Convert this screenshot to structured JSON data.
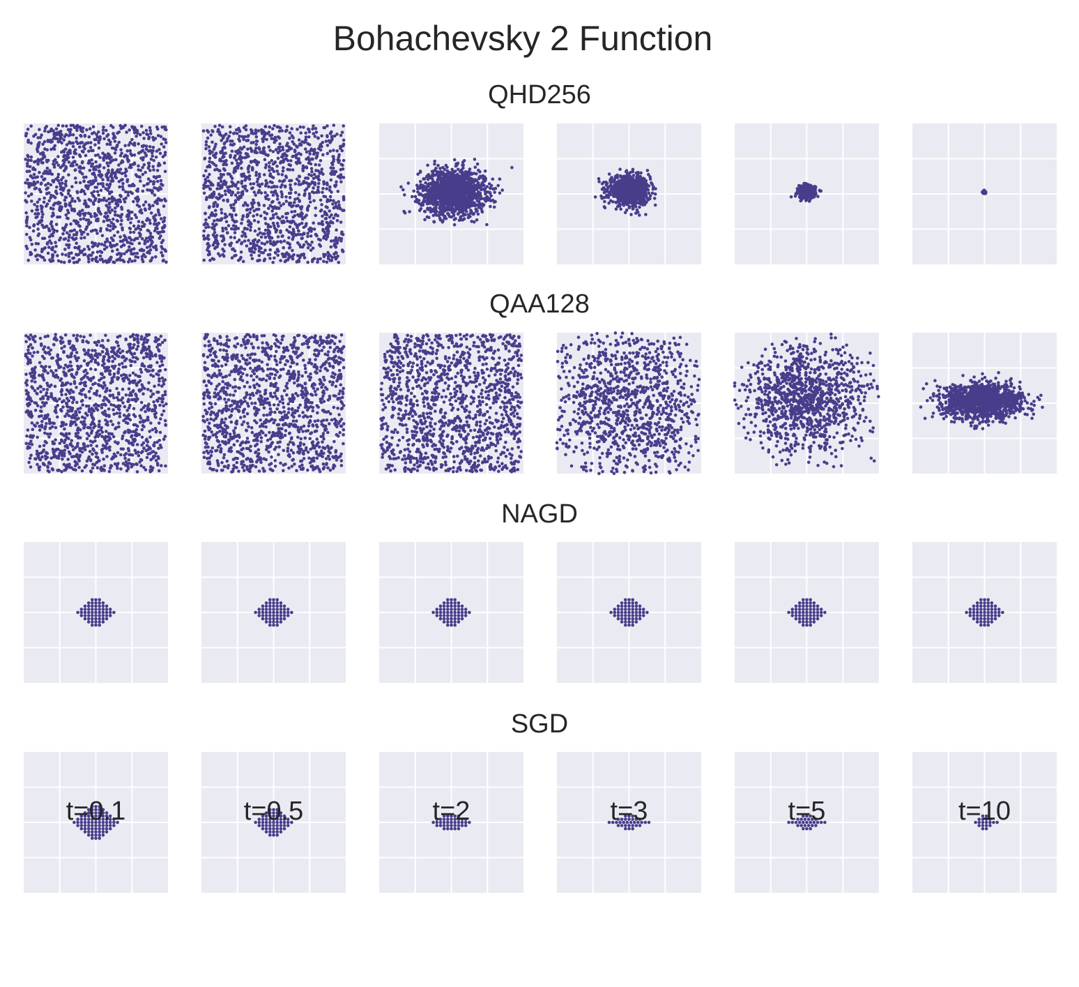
{
  "figure": {
    "title": "Bohachevsky 2 Function"
  },
  "style": {
    "panel_background": "#eaeaf2",
    "grid_color": "#ffffff",
    "point_color": "#483d8b"
  },
  "chart_data": {
    "type": "scatter",
    "grid": true,
    "axis_ticks_visible": false,
    "xlim": [
      -2,
      2
    ],
    "ylim": [
      -2,
      2
    ],
    "gridlines": [
      -1,
      0,
      1
    ],
    "time_labels": [
      "t=0.1",
      "t=0.5",
      "t=2",
      "t=3",
      "t=5",
      "t=10"
    ],
    "methods": [
      {
        "name": "QHD256",
        "panels": [
          {
            "distribution": "uniform",
            "n": 1300,
            "xlim": [
              -1.95,
              1.95
            ],
            "ylim": [
              -1.95,
              1.95
            ],
            "clip": true
          },
          {
            "distribution": "uniform",
            "n": 1300,
            "xlim": [
              -1.95,
              1.95
            ],
            "ylim": [
              -1.95,
              1.95
            ],
            "clip": true
          },
          {
            "distribution": "gaussian",
            "n": 1400,
            "center": [
              0.05,
              0.05
            ],
            "std": [
              0.45,
              0.32
            ]
          },
          {
            "distribution": "gaussian",
            "n": 900,
            "center": [
              0.0,
              0.1
            ],
            "std": [
              0.28,
              0.2
            ]
          },
          {
            "distribution": "gaussian",
            "n": 400,
            "center": [
              0.0,
              0.05
            ],
            "std": [
              0.12,
              0.09
            ]
          },
          {
            "distribution": "gaussian",
            "n": 60,
            "center": [
              0.0,
              0.05
            ],
            "std": [
              0.02,
              0.02
            ]
          }
        ]
      },
      {
        "name": "QAA128",
        "panels": [
          {
            "distribution": "uniform",
            "n": 1300,
            "xlim": [
              -1.95,
              1.95
            ],
            "ylim": [
              -1.95,
              1.95
            ],
            "clip": true
          },
          {
            "distribution": "uniform",
            "n": 1300,
            "xlim": [
              -1.95,
              1.95
            ],
            "ylim": [
              -1.95,
              1.95
            ],
            "clip": true
          },
          {
            "distribution": "uniform",
            "n": 1300,
            "xlim": [
              -1.95,
              1.95
            ],
            "ylim": [
              -1.95,
              1.95
            ],
            "clip": true
          },
          {
            "distribution": "gaussian",
            "n": 1300,
            "center": [
              0.0,
              0.0
            ],
            "std": [
              1.2,
              1.2
            ],
            "clip": true
          },
          {
            "distribution": "gaussian",
            "n": 1100,
            "center": [
              0.0,
              0.1
            ],
            "std": [
              0.9,
              0.75
            ],
            "clip": true
          },
          {
            "distribution": "gaussian",
            "n": 1300,
            "center": [
              -0.05,
              0.05
            ],
            "std": [
              0.55,
              0.25
            ]
          }
        ]
      },
      {
        "name": "NAGD",
        "panels": [
          {
            "distribution": "lattice",
            "step": 0.1,
            "rows": [
              [
                -0.1,
                0.15
              ],
              [
                -0.2,
                0.25
              ],
              [
                -0.3,
                0.35
              ],
              [
                -0.4,
                0.45
              ],
              [
                -0.5,
                0.5
              ],
              [
                -0.4,
                0.45
              ],
              [
                -0.3,
                0.35
              ],
              [
                -0.2,
                0.25
              ],
              [
                -0.1,
                0.15
              ]
            ],
            "y_step": 0.09
          },
          {
            "distribution": "lattice",
            "step": 0.1,
            "rows": [
              [
                -0.1,
                0.15
              ],
              [
                -0.2,
                0.25
              ],
              [
                -0.3,
                0.35
              ],
              [
                -0.4,
                0.45
              ],
              [
                -0.5,
                0.5
              ],
              [
                -0.4,
                0.45
              ],
              [
                -0.3,
                0.35
              ],
              [
                -0.2,
                0.25
              ],
              [
                -0.1,
                0.15
              ]
            ],
            "y_step": 0.09
          },
          {
            "distribution": "lattice",
            "step": 0.1,
            "rows": [
              [
                -0.1,
                0.15
              ],
              [
                -0.2,
                0.25
              ],
              [
                -0.3,
                0.35
              ],
              [
                -0.4,
                0.45
              ],
              [
                -0.5,
                0.5
              ],
              [
                -0.4,
                0.45
              ],
              [
                -0.3,
                0.35
              ],
              [
                -0.2,
                0.25
              ],
              [
                -0.1,
                0.15
              ]
            ],
            "y_step": 0.09
          },
          {
            "distribution": "lattice",
            "step": 0.1,
            "rows": [
              [
                -0.1,
                0.15
              ],
              [
                -0.2,
                0.25
              ],
              [
                -0.3,
                0.35
              ],
              [
                -0.4,
                0.45
              ],
              [
                -0.5,
                0.5
              ],
              [
                -0.4,
                0.45
              ],
              [
                -0.3,
                0.35
              ],
              [
                -0.2,
                0.25
              ],
              [
                -0.1,
                0.15
              ]
            ],
            "y_step": 0.09
          },
          {
            "distribution": "lattice",
            "step": 0.1,
            "rows": [
              [
                -0.1,
                0.15
              ],
              [
                -0.2,
                0.25
              ],
              [
                -0.3,
                0.35
              ],
              [
                -0.4,
                0.45
              ],
              [
                -0.5,
                0.5
              ],
              [
                -0.4,
                0.45
              ],
              [
                -0.3,
                0.35
              ],
              [
                -0.2,
                0.25
              ],
              [
                -0.1,
                0.15
              ]
            ],
            "y_step": 0.09
          },
          {
            "distribution": "lattice",
            "step": 0.1,
            "rows": [
              [
                -0.1,
                0.15
              ],
              [
                -0.2,
                0.25
              ],
              [
                -0.3,
                0.35
              ],
              [
                -0.4,
                0.45
              ],
              [
                -0.5,
                0.5
              ],
              [
                -0.4,
                0.45
              ],
              [
                -0.3,
                0.35
              ],
              [
                -0.2,
                0.25
              ],
              [
                -0.1,
                0.15
              ]
            ],
            "y_step": 0.09
          }
        ]
      },
      {
        "name": "SGD",
        "panels": [
          {
            "distribution": "lattice",
            "step": 0.1,
            "rows": [
              [
                -0.1,
                0.15
              ],
              [
                -0.2,
                0.25
              ],
              [
                -0.3,
                0.35
              ],
              [
                -0.4,
                0.45
              ],
              [
                -0.5,
                0.5
              ],
              [
                -0.6,
                0.65
              ],
              [
                -0.5,
                0.5
              ],
              [
                -0.4,
                0.45
              ],
              [
                -0.3,
                0.35
              ],
              [
                -0.2,
                0.25
              ],
              [
                -0.1,
                0.15
              ]
            ],
            "y_step": 0.09
          },
          {
            "distribution": "lattice",
            "step": 0.1,
            "rows": [
              [
                -0.1,
                0.15
              ],
              [
                -0.2,
                0.25
              ],
              [
                -0.3,
                0.35
              ],
              [
                -0.4,
                0.45
              ],
              [
                -0.5,
                0.5
              ],
              [
                -0.4,
                0.45
              ],
              [
                -0.3,
                0.35
              ],
              [
                -0.2,
                0.25
              ],
              [
                -0.1,
                0.15
              ]
            ],
            "y_step": 0.09
          },
          {
            "distribution": "lattice",
            "step": 0.1,
            "rows": [
              [
                -0.2,
                0.25
              ],
              [
                -0.4,
                0.45
              ],
              [
                -0.5,
                0.5
              ],
              [
                -0.4,
                0.45
              ],
              [
                -0.2,
                0.25
              ]
            ],
            "y_step": 0.09
          },
          {
            "distribution": "lattice",
            "step": 0.1,
            "rows": [
              [
                -0.1,
                0.15
              ],
              [
                -0.3,
                0.35
              ],
              [
                -0.55,
                0.55
              ],
              [
                -0.3,
                0.35
              ],
              [
                -0.1,
                0.15
              ]
            ],
            "y_step": 0.09
          },
          {
            "distribution": "lattice",
            "step": 0.1,
            "rows": [
              [
                -0.1,
                0.15
              ],
              [
                -0.25,
                0.25
              ],
              [
                -0.5,
                0.5
              ],
              [
                -0.25,
                0.25
              ],
              [
                -0.1,
                0.15
              ]
            ],
            "y_step": 0.09
          },
          {
            "distribution": "lattice",
            "step": 0.1,
            "rows": [
              [
                -0.05,
                0.05
              ],
              [
                -0.15,
                0.15
              ],
              [
                -0.25,
                0.4
              ],
              [
                -0.15,
                0.15
              ],
              [
                -0.05,
                0.05
              ]
            ],
            "y_step": 0.09
          }
        ]
      }
    ]
  }
}
